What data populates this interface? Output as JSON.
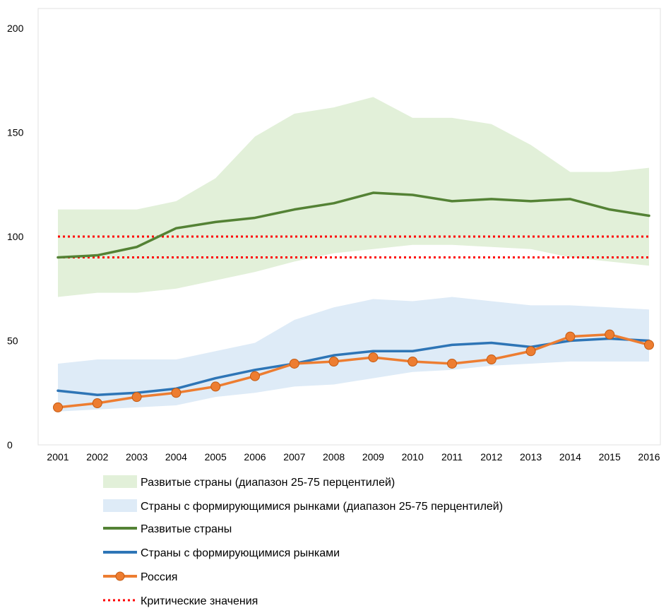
{
  "chart_data": {
    "type": "line",
    "x": [
      2001,
      2002,
      2003,
      2004,
      2005,
      2006,
      2007,
      2008,
      2009,
      2010,
      2011,
      2012,
      2013,
      2014,
      2015,
      2016
    ],
    "ylim": [
      0,
      200
    ],
    "yticks": [
      0,
      50,
      100,
      150,
      200
    ],
    "grid": false,
    "legend_position": "bottom",
    "bands": [
      {
        "name": "Развитые страны (диапазон 25-75 перцентилей)",
        "color": "#e2f0d9",
        "lower": [
          71,
          73,
          73,
          75,
          79,
          83,
          88,
          92,
          94,
          96,
          96,
          95,
          94,
          90,
          88,
          86
        ],
        "upper": [
          113,
          113,
          113,
          117,
          128,
          148,
          159,
          162,
          167,
          157,
          157,
          154,
          144,
          131,
          131,
          133
        ]
      },
      {
        "name": "Страны с формирующимися рынками (диапазон 25-75 перцентилей)",
        "color": "#deebf7",
        "lower": [
          16,
          17,
          18,
          19,
          23,
          25,
          28,
          29,
          32,
          35,
          36,
          38,
          39,
          40,
          40,
          40
        ],
        "upper": [
          39,
          41,
          41,
          41,
          45,
          49,
          60,
          66,
          70,
          69,
          71,
          69,
          67,
          67,
          66,
          65
        ]
      }
    ],
    "series": [
      {
        "name": "Развитые страны",
        "color": "#548235",
        "values": [
          90,
          91,
          95,
          104,
          107,
          109,
          113,
          116,
          121,
          120,
          117,
          118,
          117,
          118,
          113,
          110
        ]
      },
      {
        "name": "Страны с формирующимися рынками",
        "color": "#2e75b6",
        "values": [
          26,
          24,
          25,
          27,
          32,
          36,
          39,
          43,
          45,
          45,
          48,
          49,
          47,
          50,
          51,
          50
        ]
      },
      {
        "name": "Россия",
        "color": "#ed7d31",
        "marker_color": "#ed7d31",
        "values": [
          18,
          20,
          23,
          25,
          28,
          33,
          39,
          40,
          42,
          40,
          39,
          41,
          45,
          52,
          53,
          48
        ]
      }
    ],
    "thresholds": {
      "name": "Критические значения",
      "color": "#ff0000",
      "values": [
        90,
        100
      ]
    }
  }
}
